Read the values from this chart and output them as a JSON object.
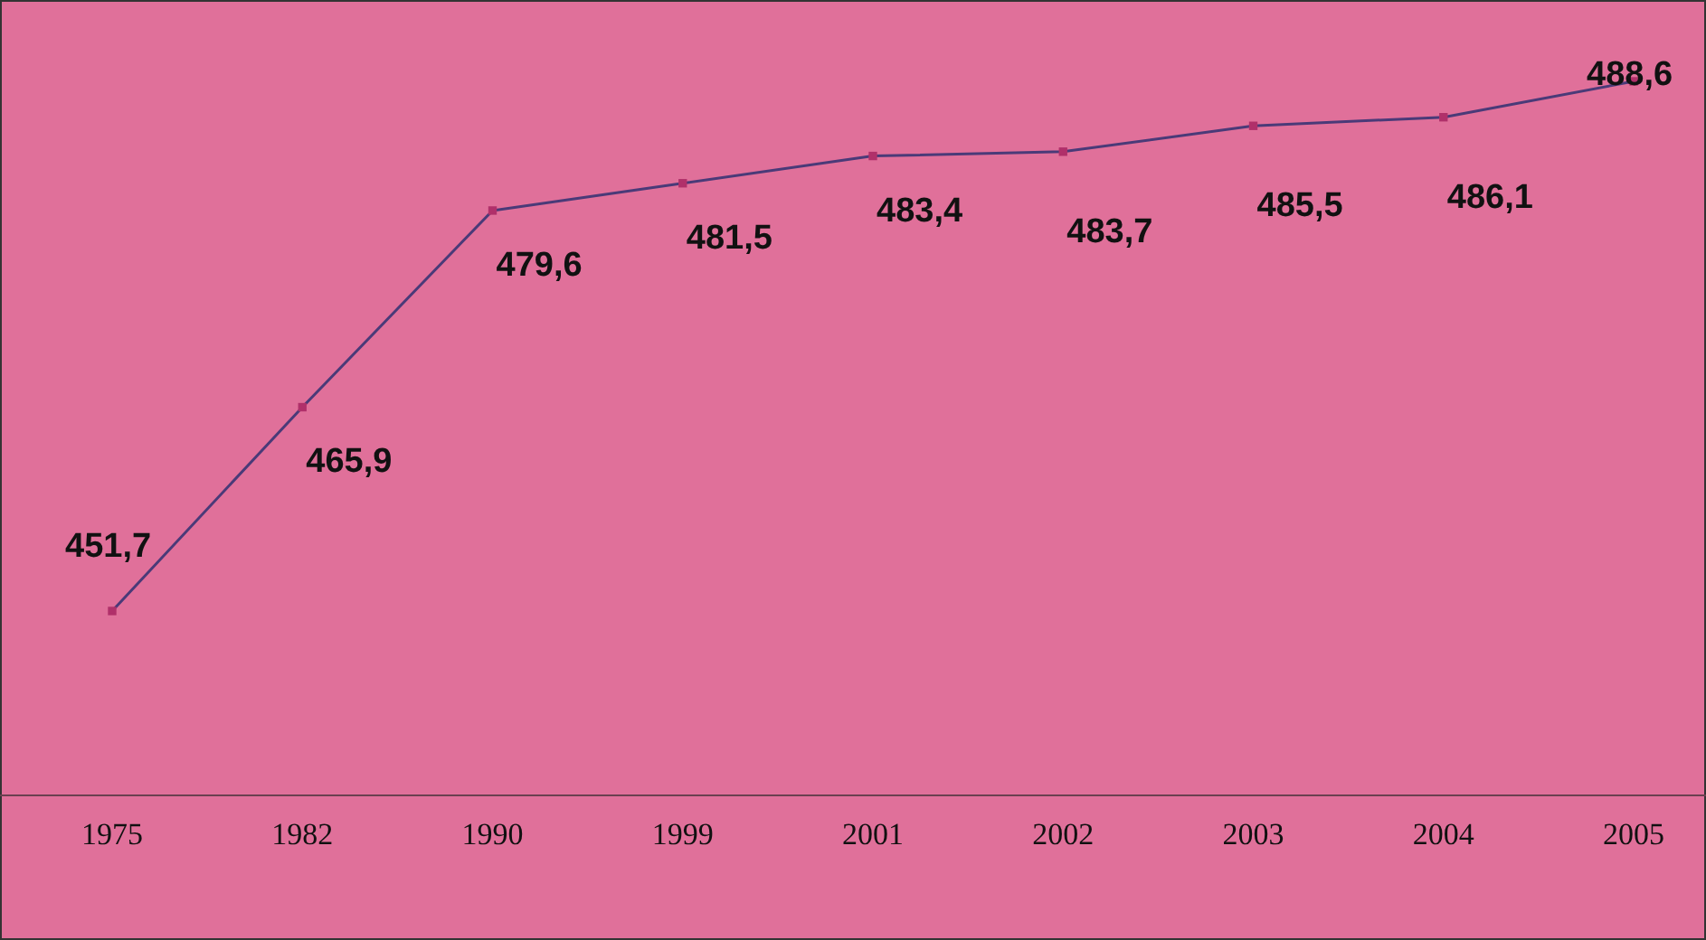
{
  "chart_data": {
    "type": "line",
    "categories": [
      "1975",
      "1982",
      "1990",
      "1999",
      "2001",
      "2002",
      "2003",
      "2004",
      "2005"
    ],
    "series": [
      {
        "color": "#4a3a78",
        "values": [
          451.7,
          465.9,
          479.6,
          481.5,
          483.4,
          483.7,
          485.5,
          486.1,
          488.6
        ],
        "value_labels": [
          "451,7",
          "465,9",
          "479,6",
          "481,5",
          "483,4",
          "483,7",
          "485,5",
          "486,1",
          "488,6"
        ]
      }
    ],
    "marker": "square",
    "tick_labels": "x"
  }
}
